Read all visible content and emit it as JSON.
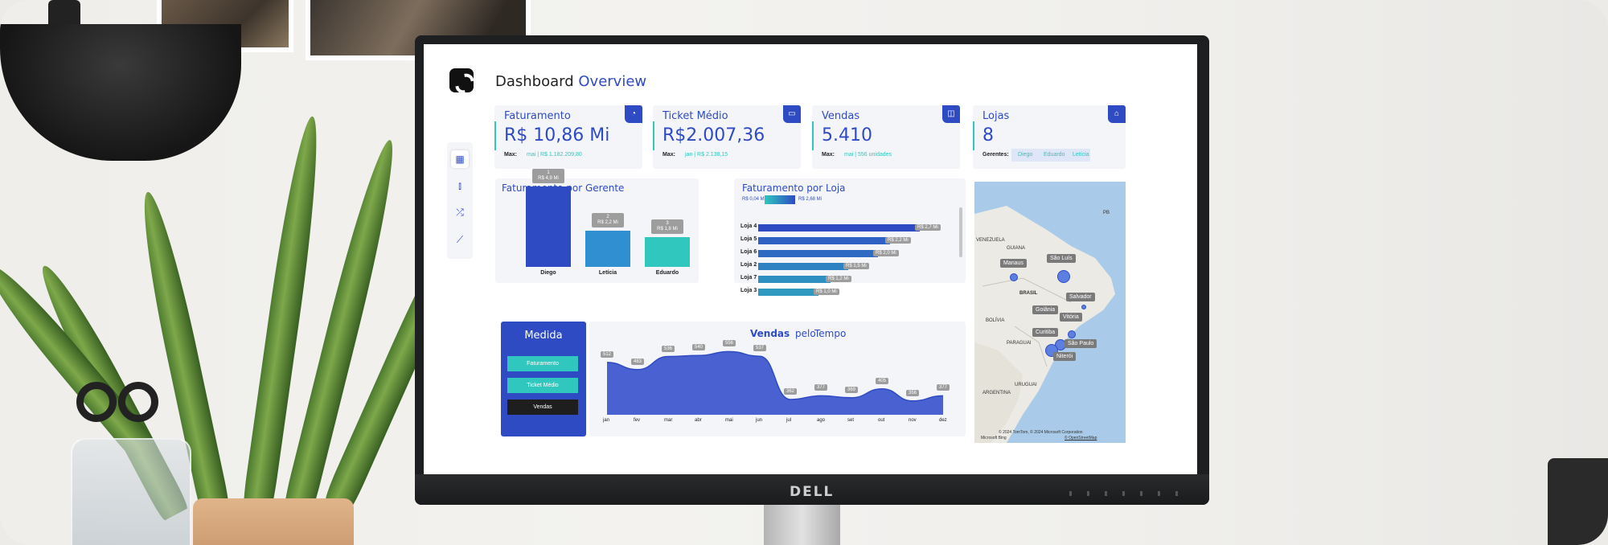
{
  "header": {
    "title_prefix": "Dashboard",
    "title_emphasis": "Overview"
  },
  "kpis": [
    {
      "title": "Faturamento",
      "value": "R$ 10,86 Mi",
      "max_label": "Max:",
      "max_value": "mai | R$ 1.182.209,80",
      "icon": "pie-chart-icon"
    },
    {
      "title": "Ticket Médio",
      "value": "R$2.007,36",
      "max_label": "Max:",
      "max_value": "jan | R$ 2.138,15",
      "icon": "card-icon"
    },
    {
      "title": "Vendas",
      "value": "5.410",
      "max_label": "Max:",
      "max_value": "mai | 556 unidades",
      "icon": "bag-icon"
    },
    {
      "title": "Lojas",
      "value": "8",
      "managers_label": "Gerentes:",
      "managers": [
        "Diego",
        "Eduardo",
        "Letícia"
      ],
      "icon": "store-icon"
    }
  ],
  "nav": [
    {
      "icon": "grid-icon",
      "glyph": "▦"
    },
    {
      "icon": "bar-chart-icon",
      "glyph": "⫾"
    },
    {
      "icon": "shuffle-icon",
      "glyph": "⤮"
    },
    {
      "icon": "line-chart-icon",
      "glyph": "⟋"
    }
  ],
  "manager_chart": {
    "title": "Faturamento por Gerente",
    "chart_data": {
      "type": "bar",
      "categories": [
        "Diego",
        "Letícia",
        "Eduardo"
      ],
      "values": [
        4.9,
        2.2,
        1.8
      ],
      "ranks": [
        "1",
        "2",
        "3"
      ],
      "labels": [
        "R$ 4,9 Mi",
        "R$ 2,2 Mi",
        "R$ 1,8 Mi"
      ]
    }
  },
  "store_chart": {
    "title": "Faturamento por Loja",
    "legend_min": "R$ 0,04 Mi",
    "legend_max": "R$ 2,68 Mi",
    "chart_data": {
      "type": "bar",
      "orientation": "horizontal",
      "categories": [
        "Loja 4",
        "Loja 5",
        "Loja 6",
        "Loja 2",
        "Loja 7",
        "Loja 3"
      ],
      "values": [
        2.7,
        2.2,
        2.0,
        1.5,
        1.2,
        1.0
      ],
      "labels": [
        "R$ 2,7 Mi",
        "R$ 2,2 Mi",
        "R$ 2,0 Mi",
        "R$ 1,5 Mi",
        "R$ 1,2 Mi",
        "R$ 1,0 Mi"
      ]
    }
  },
  "measure": {
    "title": "Medida",
    "options": [
      "Faturamento",
      "Ticket Médio",
      "Vendas"
    ],
    "selected": "Vendas"
  },
  "sales_chart": {
    "title_bold": "Vendas",
    "title_rest": "pelo",
    "title_tail": "Tempo",
    "chart_data": {
      "type": "area",
      "categories": [
        "jan",
        "fev",
        "mar",
        "abr",
        "mai",
        "jun",
        "jul",
        "ago",
        "set",
        "out",
        "nov",
        "dez"
      ],
      "values": [
        512,
        483,
        536,
        540,
        556,
        537,
        362,
        377,
        369,
        405,
        356,
        377
      ]
    }
  },
  "map": {
    "labels": [
      "VENEZUELA",
      "GUIANA",
      "BRASIL",
      "BOLÍVIA",
      "PARAGUAI",
      "URUGUAI",
      "ARGENTINA",
      "PB"
    ],
    "cities": [
      "Manaus",
      "São Luís",
      "Salvador",
      "Goiânia",
      "Vitória",
      "Curitiba",
      "São Paulo",
      "Niterói"
    ],
    "copyright": "© 2024 TomTom, © 2024 Microsoft Corporation",
    "terms": "© OpenStreetMap",
    "brand": "Microsoft Bing",
    "colors": {
      "water": "#a9cbe9",
      "land": "#eceae4",
      "bubble": "#5c7fe0"
    }
  },
  "colors": {
    "primary": "#2e4bc4",
    "accent": "#2fc7be",
    "panel": "#f4f5f9",
    "tag": "#9d9d9d"
  }
}
